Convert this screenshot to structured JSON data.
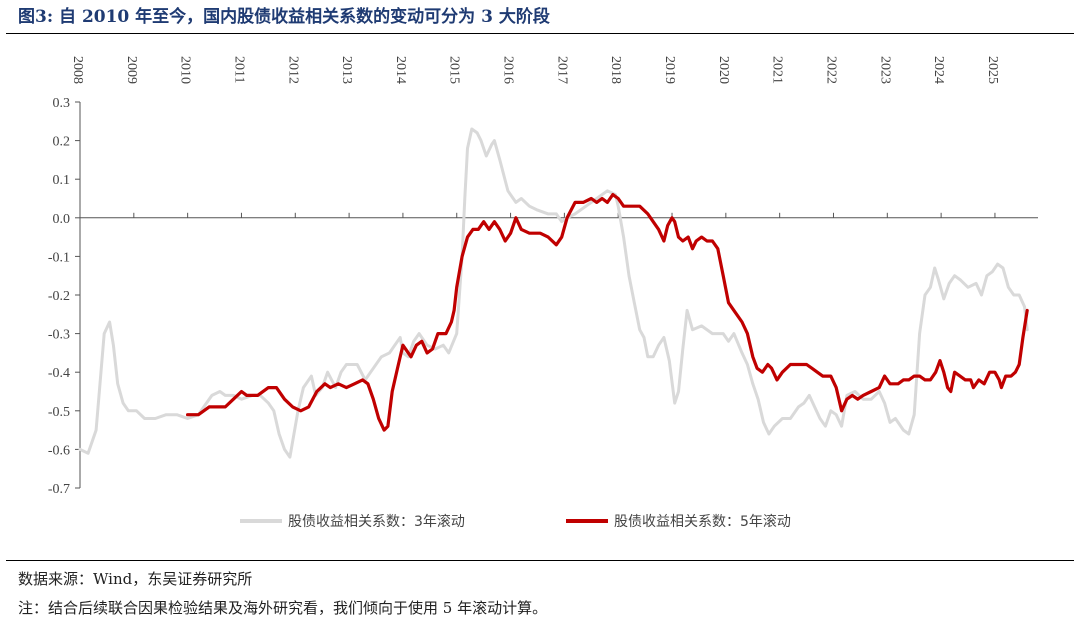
{
  "title": "图3:  自 2010 年至今，国内股债收益相关系数的变动可分为 3 大阶段",
  "source": "数据来源：Wind，东吴证券研究所",
  "note": "注：结合后续联合因果检验结果及海外研究看，我们倾向于使用 5 年滚动计算。",
  "colors": {
    "series_3y": "#d9d9d9",
    "series_5y": "#c00000",
    "title": "#1f3b73"
  },
  "chart_data": {
    "type": "line",
    "x_axis": {
      "type": "time",
      "position": "top",
      "ticks": [
        "2008",
        "2009",
        "2010",
        "2011",
        "2012",
        "2013",
        "2014",
        "2015",
        "2016",
        "2017",
        "2018",
        "2019",
        "2020",
        "2021",
        "2022",
        "2023",
        "2024",
        "2025"
      ],
      "range": [
        2008.0,
        2025.8
      ]
    },
    "y_axis": {
      "ticks": [
        "0.3",
        "0.2",
        "0.1",
        "0.0",
        "-0.1",
        "-0.2",
        "-0.3",
        "-0.4",
        "-0.5",
        "-0.6",
        "-0.7"
      ],
      "range": [
        -0.7,
        0.3
      ]
    },
    "grid": false,
    "legend_position": "bottom",
    "series": [
      {
        "name": "股债收益相关系数：3年滚动",
        "color": "#d9d9d9",
        "points": [
          [
            2008.0,
            -0.6
          ],
          [
            2008.15,
            -0.61
          ],
          [
            2008.3,
            -0.55
          ],
          [
            2008.45,
            -0.3
          ],
          [
            2008.55,
            -0.27
          ],
          [
            2008.62,
            -0.33
          ],
          [
            2008.7,
            -0.43
          ],
          [
            2008.8,
            -0.48
          ],
          [
            2008.9,
            -0.5
          ],
          [
            2009.05,
            -0.5
          ],
          [
            2009.2,
            -0.52
          ],
          [
            2009.4,
            -0.52
          ],
          [
            2009.6,
            -0.51
          ],
          [
            2009.8,
            -0.51
          ],
          [
            2010.0,
            -0.52
          ],
          [
            2010.2,
            -0.51
          ],
          [
            2010.3,
            -0.49
          ],
          [
            2010.45,
            -0.46
          ],
          [
            2010.6,
            -0.45
          ],
          [
            2010.7,
            -0.46
          ],
          [
            2010.85,
            -0.46
          ],
          [
            2011.0,
            -0.47
          ],
          [
            2011.2,
            -0.46
          ],
          [
            2011.35,
            -0.46
          ],
          [
            2011.5,
            -0.48
          ],
          [
            2011.6,
            -0.5
          ],
          [
            2011.7,
            -0.56
          ],
          [
            2011.8,
            -0.6
          ],
          [
            2011.9,
            -0.62
          ],
          [
            2011.95,
            -0.58
          ],
          [
            2012.05,
            -0.5
          ],
          [
            2012.15,
            -0.44
          ],
          [
            2012.3,
            -0.41
          ],
          [
            2012.38,
            -0.46
          ],
          [
            2012.5,
            -0.44
          ],
          [
            2012.6,
            -0.4
          ],
          [
            2012.75,
            -0.44
          ],
          [
            2012.85,
            -0.4
          ],
          [
            2012.95,
            -0.38
          ],
          [
            2013.15,
            -0.38
          ],
          [
            2013.3,
            -0.42
          ],
          [
            2013.45,
            -0.39
          ],
          [
            2013.6,
            -0.36
          ],
          [
            2013.75,
            -0.35
          ],
          [
            2013.85,
            -0.33
          ],
          [
            2013.95,
            -0.31
          ],
          [
            2014.0,
            -0.35
          ],
          [
            2014.1,
            -0.36
          ],
          [
            2014.2,
            -0.32
          ],
          [
            2014.3,
            -0.3
          ],
          [
            2014.45,
            -0.33
          ],
          [
            2014.6,
            -0.34
          ],
          [
            2014.75,
            -0.33
          ],
          [
            2014.85,
            -0.35
          ],
          [
            2015.0,
            -0.3
          ],
          [
            2015.05,
            -0.2
          ],
          [
            2015.1,
            -0.1
          ],
          [
            2015.15,
            0.05
          ],
          [
            2015.2,
            0.18
          ],
          [
            2015.28,
            0.23
          ],
          [
            2015.38,
            0.22
          ],
          [
            2015.45,
            0.2
          ],
          [
            2015.55,
            0.16
          ],
          [
            2015.65,
            0.19
          ],
          [
            2015.7,
            0.2
          ],
          [
            2015.8,
            0.15
          ],
          [
            2015.95,
            0.07
          ],
          [
            2016.1,
            0.04
          ],
          [
            2016.2,
            0.05
          ],
          [
            2016.35,
            0.03
          ],
          [
            2016.5,
            0.02
          ],
          [
            2016.7,
            0.01
          ],
          [
            2016.85,
            0.01
          ],
          [
            2016.95,
            -0.01
          ],
          [
            2017.05,
            0.0
          ],
          [
            2017.2,
            0.01
          ],
          [
            2017.4,
            0.03
          ],
          [
            2017.6,
            0.05
          ],
          [
            2017.8,
            0.07
          ],
          [
            2017.95,
            0.06
          ],
          [
            2018.0,
            0.03
          ],
          [
            2018.1,
            -0.05
          ],
          [
            2018.2,
            -0.15
          ],
          [
            2018.3,
            -0.22
          ],
          [
            2018.4,
            -0.29
          ],
          [
            2018.48,
            -0.31
          ],
          [
            2018.55,
            -0.36
          ],
          [
            2018.65,
            -0.36
          ],
          [
            2018.75,
            -0.33
          ],
          [
            2018.85,
            -0.31
          ],
          [
            2018.95,
            -0.37
          ],
          [
            2019.05,
            -0.48
          ],
          [
            2019.12,
            -0.45
          ],
          [
            2019.2,
            -0.34
          ],
          [
            2019.28,
            -0.24
          ],
          [
            2019.38,
            -0.29
          ],
          [
            2019.55,
            -0.28
          ],
          [
            2019.75,
            -0.3
          ],
          [
            2019.95,
            -0.3
          ],
          [
            2020.05,
            -0.32
          ],
          [
            2020.15,
            -0.3
          ],
          [
            2020.3,
            -0.35
          ],
          [
            2020.4,
            -0.38
          ],
          [
            2020.5,
            -0.43
          ],
          [
            2020.6,
            -0.47
          ],
          [
            2020.7,
            -0.53
          ],
          [
            2020.8,
            -0.56
          ],
          [
            2020.9,
            -0.54
          ],
          [
            2021.05,
            -0.52
          ],
          [
            2021.2,
            -0.52
          ],
          [
            2021.35,
            -0.49
          ],
          [
            2021.45,
            -0.48
          ],
          [
            2021.55,
            -0.46
          ],
          [
            2021.65,
            -0.49
          ],
          [
            2021.75,
            -0.52
          ],
          [
            2021.85,
            -0.54
          ],
          [
            2021.95,
            -0.5
          ],
          [
            2022.05,
            -0.51
          ],
          [
            2022.15,
            -0.54
          ],
          [
            2022.25,
            -0.46
          ],
          [
            2022.4,
            -0.45
          ],
          [
            2022.55,
            -0.47
          ],
          [
            2022.7,
            -0.47
          ],
          [
            2022.85,
            -0.45
          ],
          [
            2022.95,
            -0.48
          ],
          [
            2023.05,
            -0.53
          ],
          [
            2023.15,
            -0.52
          ],
          [
            2023.3,
            -0.55
          ],
          [
            2023.4,
            -0.56
          ],
          [
            2023.5,
            -0.51
          ],
          [
            2023.6,
            -0.3
          ],
          [
            2023.7,
            -0.2
          ],
          [
            2023.8,
            -0.18
          ],
          [
            2023.88,
            -0.13
          ],
          [
            2023.95,
            -0.16
          ],
          [
            2024.05,
            -0.21
          ],
          [
            2024.15,
            -0.17
          ],
          [
            2024.25,
            -0.15
          ],
          [
            2024.35,
            -0.16
          ],
          [
            2024.5,
            -0.18
          ],
          [
            2024.65,
            -0.17
          ],
          [
            2024.75,
            -0.2
          ],
          [
            2024.85,
            -0.15
          ],
          [
            2024.95,
            -0.14
          ],
          [
            2025.05,
            -0.12
          ],
          [
            2025.15,
            -0.13
          ],
          [
            2025.25,
            -0.18
          ],
          [
            2025.35,
            -0.2
          ],
          [
            2025.45,
            -0.2
          ],
          [
            2025.55,
            -0.23
          ],
          [
            2025.6,
            -0.29
          ]
        ]
      },
      {
        "name": "股债收益相关系数：5年滚动",
        "color": "#c00000",
        "points": [
          [
            2010.0,
            -0.51
          ],
          [
            2010.2,
            -0.51
          ],
          [
            2010.4,
            -0.49
          ],
          [
            2010.6,
            -0.49
          ],
          [
            2010.7,
            -0.49
          ],
          [
            2010.85,
            -0.47
          ],
          [
            2011.0,
            -0.45
          ],
          [
            2011.1,
            -0.46
          ],
          [
            2011.3,
            -0.46
          ],
          [
            2011.5,
            -0.44
          ],
          [
            2011.65,
            -0.44
          ],
          [
            2011.8,
            -0.47
          ],
          [
            2011.95,
            -0.49
          ],
          [
            2012.1,
            -0.5
          ],
          [
            2012.25,
            -0.49
          ],
          [
            2012.4,
            -0.45
          ],
          [
            2012.55,
            -0.43
          ],
          [
            2012.65,
            -0.44
          ],
          [
            2012.8,
            -0.43
          ],
          [
            2012.95,
            -0.44
          ],
          [
            2013.1,
            -0.43
          ],
          [
            2013.25,
            -0.42
          ],
          [
            2013.35,
            -0.43
          ],
          [
            2013.45,
            -0.47
          ],
          [
            2013.55,
            -0.52
          ],
          [
            2013.65,
            -0.55
          ],
          [
            2013.72,
            -0.54
          ],
          [
            2013.8,
            -0.45
          ],
          [
            2013.9,
            -0.39
          ],
          [
            2014.0,
            -0.33
          ],
          [
            2014.1,
            -0.35
          ],
          [
            2014.15,
            -0.36
          ],
          [
            2014.25,
            -0.33
          ],
          [
            2014.35,
            -0.32
          ],
          [
            2014.45,
            -0.35
          ],
          [
            2014.55,
            -0.34
          ],
          [
            2014.65,
            -0.3
          ],
          [
            2014.8,
            -0.3
          ],
          [
            2014.9,
            -0.27
          ],
          [
            2014.95,
            -0.24
          ],
          [
            2015.0,
            -0.18
          ],
          [
            2015.1,
            -0.1
          ],
          [
            2015.2,
            -0.05
          ],
          [
            2015.3,
            -0.03
          ],
          [
            2015.4,
            -0.03
          ],
          [
            2015.5,
            -0.01
          ],
          [
            2015.6,
            -0.03
          ],
          [
            2015.7,
            -0.01
          ],
          [
            2015.8,
            -0.03
          ],
          [
            2015.9,
            -0.06
          ],
          [
            2016.0,
            -0.04
          ],
          [
            2016.1,
            0.0
          ],
          [
            2016.2,
            -0.03
          ],
          [
            2016.35,
            -0.04
          ],
          [
            2016.55,
            -0.04
          ],
          [
            2016.7,
            -0.05
          ],
          [
            2016.85,
            -0.07
          ],
          [
            2016.95,
            -0.05
          ],
          [
            2017.05,
            0.0
          ],
          [
            2017.2,
            0.04
          ],
          [
            2017.35,
            0.04
          ],
          [
            2017.5,
            0.05
          ],
          [
            2017.6,
            0.04
          ],
          [
            2017.7,
            0.05
          ],
          [
            2017.8,
            0.04
          ],
          [
            2017.9,
            0.06
          ],
          [
            2018.0,
            0.05
          ],
          [
            2018.1,
            0.03
          ],
          [
            2018.25,
            0.03
          ],
          [
            2018.4,
            0.03
          ],
          [
            2018.55,
            0.01
          ],
          [
            2018.65,
            -0.01
          ],
          [
            2018.75,
            -0.03
          ],
          [
            2018.85,
            -0.06
          ],
          [
            2018.92,
            -0.02
          ],
          [
            2019.0,
            0.0
          ],
          [
            2019.05,
            -0.01
          ],
          [
            2019.12,
            -0.05
          ],
          [
            2019.2,
            -0.06
          ],
          [
            2019.3,
            -0.05
          ],
          [
            2019.38,
            -0.08
          ],
          [
            2019.45,
            -0.06
          ],
          [
            2019.55,
            -0.05
          ],
          [
            2019.65,
            -0.06
          ],
          [
            2019.75,
            -0.06
          ],
          [
            2019.85,
            -0.08
          ],
          [
            2019.95,
            -0.15
          ],
          [
            2020.05,
            -0.22
          ],
          [
            2020.15,
            -0.24
          ],
          [
            2020.3,
            -0.27
          ],
          [
            2020.4,
            -0.3
          ],
          [
            2020.5,
            -0.36
          ],
          [
            2020.58,
            -0.39
          ],
          [
            2020.68,
            -0.4
          ],
          [
            2020.78,
            -0.38
          ],
          [
            2020.85,
            -0.39
          ],
          [
            2020.95,
            -0.42
          ],
          [
            2021.05,
            -0.4
          ],
          [
            2021.2,
            -0.38
          ],
          [
            2021.35,
            -0.38
          ],
          [
            2021.5,
            -0.38
          ],
          [
            2021.6,
            -0.39
          ],
          [
            2021.7,
            -0.4
          ],
          [
            2021.8,
            -0.41
          ],
          [
            2021.95,
            -0.41
          ],
          [
            2022.05,
            -0.44
          ],
          [
            2022.15,
            -0.5
          ],
          [
            2022.25,
            -0.47
          ],
          [
            2022.35,
            -0.46
          ],
          [
            2022.45,
            -0.47
          ],
          [
            2022.55,
            -0.46
          ],
          [
            2022.7,
            -0.45
          ],
          [
            2022.85,
            -0.44
          ],
          [
            2022.95,
            -0.41
          ],
          [
            2023.05,
            -0.43
          ],
          [
            2023.2,
            -0.43
          ],
          [
            2023.3,
            -0.42
          ],
          [
            2023.4,
            -0.42
          ],
          [
            2023.5,
            -0.41
          ],
          [
            2023.6,
            -0.41
          ],
          [
            2023.7,
            -0.42
          ],
          [
            2023.8,
            -0.42
          ],
          [
            2023.9,
            -0.4
          ],
          [
            2023.98,
            -0.37
          ],
          [
            2024.05,
            -0.4
          ],
          [
            2024.12,
            -0.44
          ],
          [
            2024.18,
            -0.45
          ],
          [
            2024.25,
            -0.4
          ],
          [
            2024.35,
            -0.41
          ],
          [
            2024.45,
            -0.42
          ],
          [
            2024.55,
            -0.42
          ],
          [
            2024.6,
            -0.44
          ],
          [
            2024.7,
            -0.42
          ],
          [
            2024.8,
            -0.43
          ],
          [
            2024.9,
            -0.4
          ],
          [
            2025.0,
            -0.4
          ],
          [
            2025.08,
            -0.42
          ],
          [
            2025.12,
            -0.44
          ],
          [
            2025.2,
            -0.41
          ],
          [
            2025.3,
            -0.41
          ],
          [
            2025.38,
            -0.4
          ],
          [
            2025.45,
            -0.38
          ],
          [
            2025.52,
            -0.31
          ],
          [
            2025.6,
            -0.24
          ]
        ]
      }
    ]
  }
}
